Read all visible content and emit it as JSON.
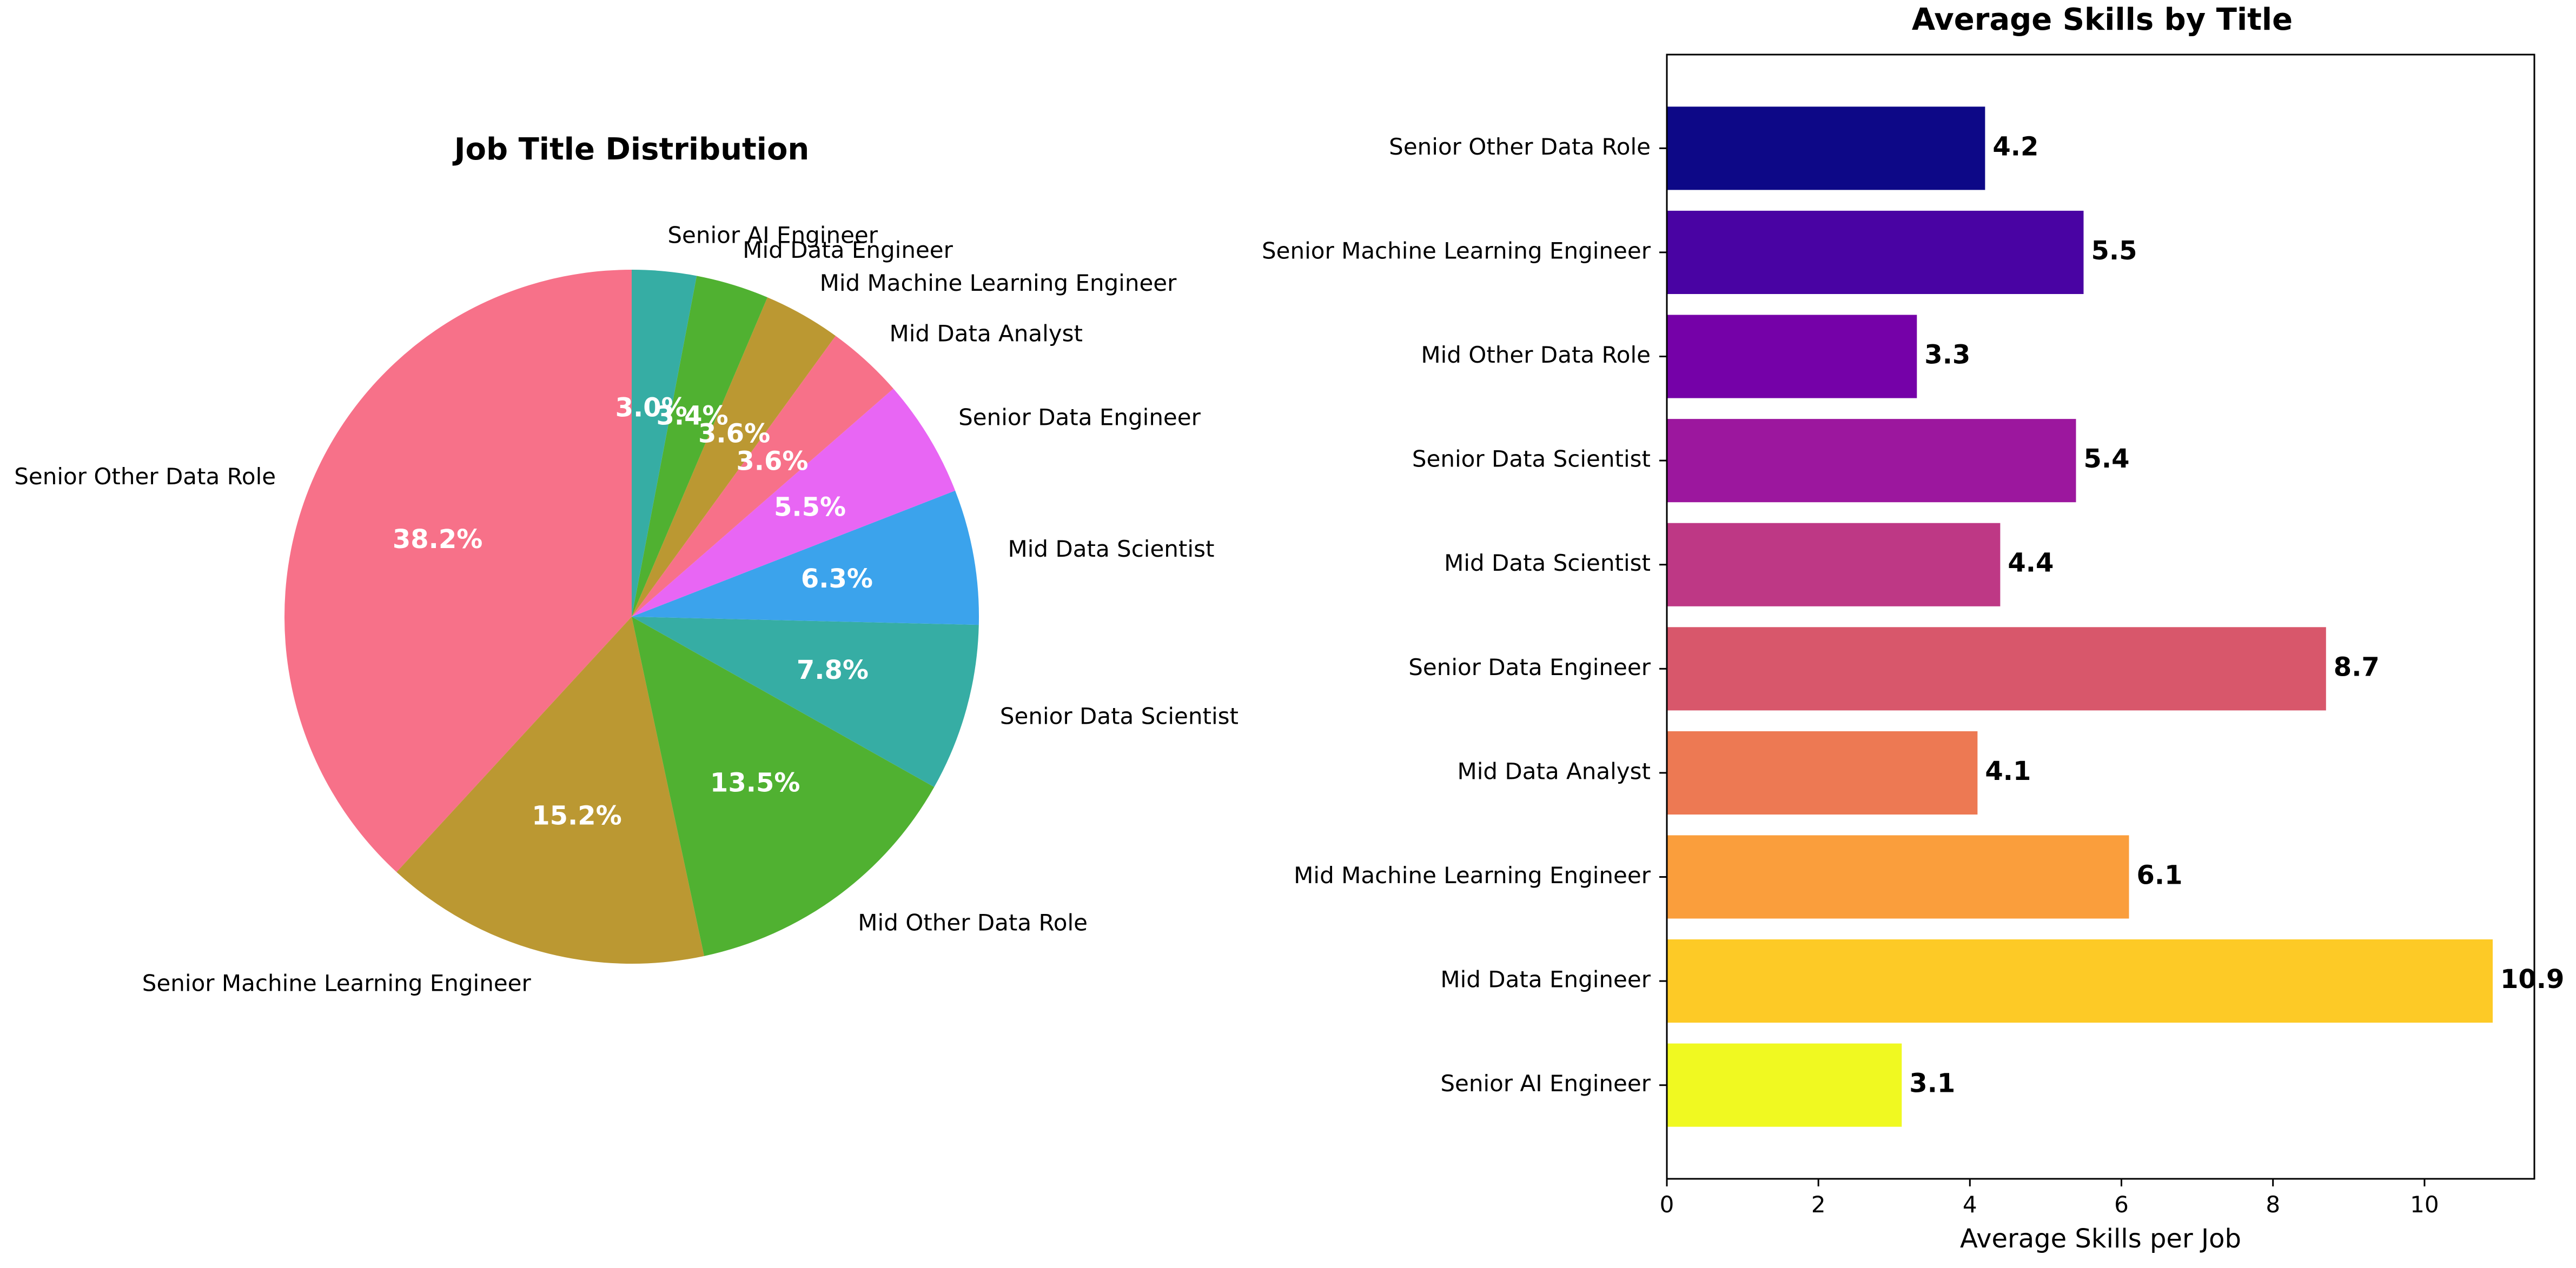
{
  "chart_data": [
    {
      "type": "pie",
      "title": "Job Title Distribution",
      "start_angle_deg": 90,
      "direction": "counterclockwise",
      "slices": [
        {
          "label": "Senior Other Data Role",
          "value": 38.2,
          "pct_label": "38.2%",
          "color": "#f77189"
        },
        {
          "label": "Senior Machine Learning Engineer",
          "value": 15.2,
          "pct_label": "15.2%",
          "color": "#bb9832"
        },
        {
          "label": "Mid Other Data Role",
          "value": 13.5,
          "pct_label": "13.5%",
          "color": "#50b131"
        },
        {
          "label": "Senior Data Scientist",
          "value": 7.8,
          "pct_label": "7.8%",
          "color": "#36ada4"
        },
        {
          "label": "Mid Data Scientist",
          "value": 6.3,
          "pct_label": "6.3%",
          "color": "#3ba3ec"
        },
        {
          "label": "Senior Data Engineer",
          "value": 5.5,
          "pct_label": "5.5%",
          "color": "#e866f4"
        },
        {
          "label": "Mid Data Analyst",
          "value": 3.6,
          "pct_label": "3.6%",
          "color": "#f77189"
        },
        {
          "label": "Mid Machine Learning Engineer",
          "value": 3.6,
          "pct_label": "3.6%",
          "color": "#bb9832"
        },
        {
          "label": "Mid Data Engineer",
          "value": 3.4,
          "pct_label": "3.4%",
          "color": "#50b131"
        },
        {
          "label": "Senior AI Engineer",
          "value": 3.0,
          "pct_label": "3.0%",
          "color": "#36ada4"
        }
      ]
    },
    {
      "type": "bar",
      "orientation": "horizontal",
      "title": "Average Skills by Title",
      "xlabel": "Average Skills per Job",
      "ylabel": "",
      "xlim": [
        0,
        11.45
      ],
      "xticks": [
        0,
        2,
        4,
        6,
        8,
        10
      ],
      "bars": [
        {
          "label": "Senior Other Data Role",
          "value": 4.2,
          "value_label": "4.2",
          "color": "#0d0887"
        },
        {
          "label": "Senior Machine Learning Engineer",
          "value": 5.5,
          "value_label": "5.5",
          "color": "#4903a3"
        },
        {
          "label": "Mid Other Data Role",
          "value": 3.3,
          "value_label": "3.3",
          "color": "#7501a8"
        },
        {
          "label": "Senior Data Scientist",
          "value": 5.4,
          "value_label": "5.4",
          "color": "#9c179e"
        },
        {
          "label": "Mid Data Scientist",
          "value": 4.4,
          "value_label": "4.4",
          "color": "#be3885"
        },
        {
          "label": "Senior Data Engineer",
          "value": 8.7,
          "value_label": "8.7",
          "color": "#d8576b"
        },
        {
          "label": "Mid Data Analyst",
          "value": 4.1,
          "value_label": "4.1",
          "color": "#ed7953"
        },
        {
          "label": "Mid Machine Learning Engineer",
          "value": 6.1,
          "value_label": "6.1",
          "color": "#fa9e3c"
        },
        {
          "label": "Mid Data Engineer",
          "value": 10.9,
          "value_label": "10.9",
          "color": "#fdca26"
        },
        {
          "label": "Senior AI Engineer",
          "value": 3.1,
          "value_label": "3.1",
          "color": "#f0f921"
        }
      ]
    }
  ]
}
